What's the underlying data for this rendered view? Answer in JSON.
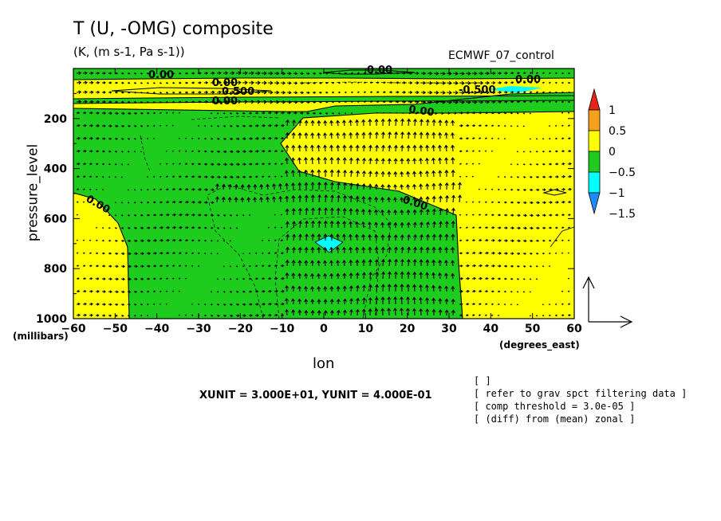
{
  "chart_data": {
    "type": "contour",
    "title": "T (U, -OMG) composite",
    "subtitle": "(K, (m s-1, Pa s-1))",
    "dataset": "ECMWF_07_control",
    "xlabel": "lon",
    "xunit": "(degrees_east)",
    "ylabel": "pressure_level",
    "yunit": "(millibars)",
    "xlim": [
      -60,
      60
    ],
    "ylim": [
      1000,
      0
    ],
    "x_ticks": [
      "-60",
      "-50",
      "-40",
      "-30",
      "-20",
      "-10",
      "0",
      "10",
      "20",
      "30",
      "40",
      "50",
      "60"
    ],
    "y_ticks": [
      "200",
      "400",
      "600",
      "800",
      "1000"
    ],
    "colorbar": {
      "labels": [
        "1",
        "0.5",
        "0",
        "-0.5",
        "-1",
        "-1.5"
      ],
      "levels": [
        1.5,
        1.0,
        0.5,
        0.0,
        -0.5,
        -1.0,
        -1.5,
        -2.0
      ],
      "colors": [
        "#e8251b",
        "#f5a21a",
        "#ffff00",
        "#1ecc1e",
        "#00ffff",
        "#1e8cff"
      ]
    },
    "contour_labels": [
      "0.00",
      "0.00",
      "0.500",
      "0.00",
      "0.00",
      "0.00",
      "0.00",
      "0.00",
      "-0.500",
      "0.00"
    ],
    "vector_scale": "XUNIT = 3.000E+01, YUNIT = 4.000E-01",
    "notes": [
      "[  ]",
      "[ refer to grav spct filtering data ]",
      "[ comp threshold = 3.0e-05 ]",
      "[ (diff) from (mean) zonal ]"
    ],
    "colors": {
      "positive": "#ffff00",
      "negative": "#1ecc1e",
      "strong_negative": "#00ffff"
    }
  }
}
